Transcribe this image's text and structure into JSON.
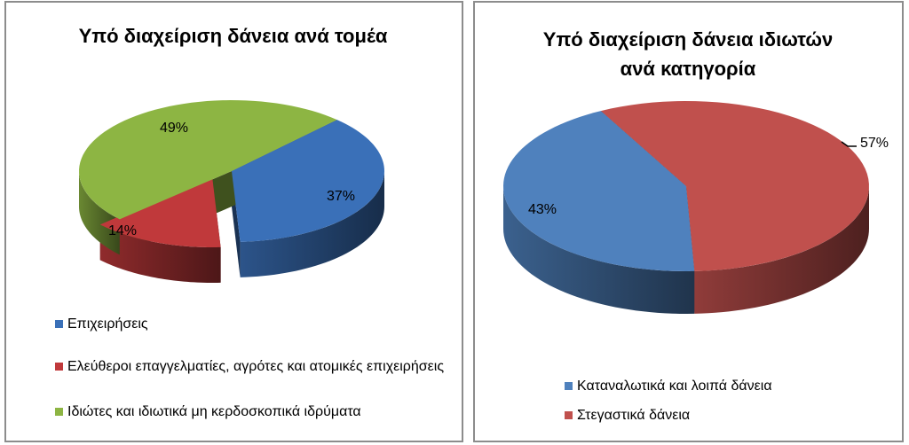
{
  "chart_data": [
    {
      "type": "pie",
      "style": "3d",
      "title": "Υπό διαχείριση δάνεια ανά τομέα",
      "categories": [
        "Επιχειρήσεις",
        "Ελεύθεροι επαγγελματίες, αγρότες και ατομικές επιχειρήσεις",
        "Ιδιώτες και ιδιωτικά μη κερδοσκοπικά ιδρύματα"
      ],
      "values": [
        37,
        14,
        49
      ],
      "labels": [
        "37%",
        "14%",
        "49%"
      ],
      "colors": [
        "#3a70b8",
        "#c0393b",
        "#8db543"
      ],
      "exploded": "Ελεύθεροι επαγγελματίες, αγρότες και ατομικές επιχειρήσεις",
      "legend": "bottom"
    },
    {
      "type": "pie",
      "style": "3d",
      "title": "Υπό διαχείριση δάνεια ιδιωτών ανά κατηγορία",
      "categories": [
        "Καταναλωτικά και λοιπά δάνεια",
        "Στεγαστικά δάνεια"
      ],
      "values": [
        43,
        57
      ],
      "labels": [
        "43%",
        "57%"
      ],
      "colors": [
        "#4f81bd",
        "#c0504d"
      ],
      "legend": "bottom"
    }
  ]
}
